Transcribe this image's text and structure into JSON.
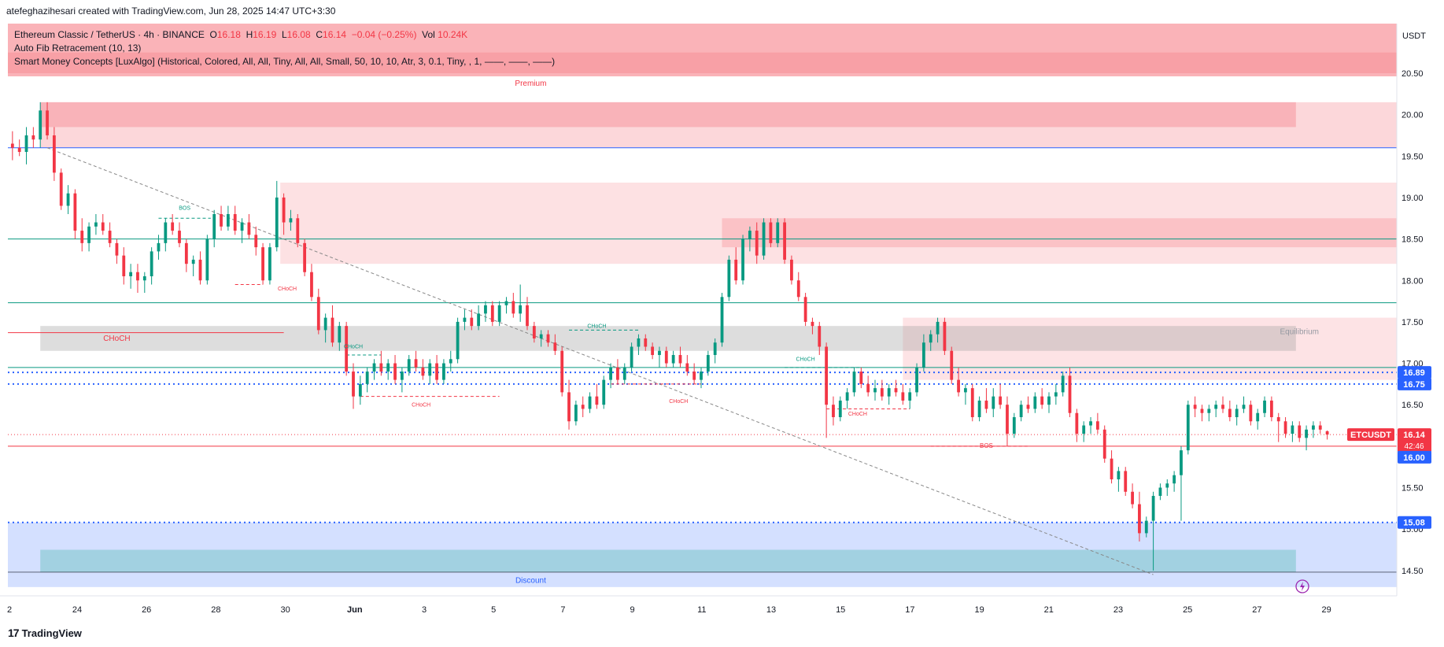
{
  "header": {
    "created_by": "atefeghazihesari created with TradingView.com, Jun 28, 2025 14:47 UTC+3:30"
  },
  "legend": {
    "symbol": "Ethereum Classic / TetherUS · 4h · BINANCE",
    "o_label": "O",
    "o_value": "16.18",
    "h_label": "H",
    "h_value": "16.19",
    "l_label": "L",
    "l_value": "16.08",
    "c_label": "C",
    "c_value": "16.14",
    "change": "−0.04 (−0.25%)",
    "vol_label": "Vol",
    "vol_value": "10.24K",
    "indicator1": "Auto Fib Retracement (10, 13)",
    "indicator2": "Smart Money Concepts [LuxAlgo] (Historical, Colored, All, All, Tiny, All, All, Small, 50, 10, 10, Atr, 3, 0.1, Tiny, , 1, ——, ——, ——)"
  },
  "footer": {
    "brand": "TradingView",
    "brand_mark": "17"
  },
  "colors": {
    "up": "#089981",
    "down": "#f23645",
    "premium": "#f7a9ad",
    "discount": "#bcd3fb",
    "fib_blue": "#2962ff",
    "axis_label_blue": "#2962ff"
  },
  "chart_data": {
    "type": "candlestick",
    "symbol": "ETCUSDT",
    "quote_currency": "USDT",
    "timeframe": "4h",
    "ylim": [
      14.25,
      20.85
    ],
    "y_ticks": [
      "20.50",
      "20.00",
      "19.50",
      "19.00",
      "18.50",
      "18.00",
      "17.50",
      "17.00",
      "16.50",
      "16.00",
      "15.50",
      "15.00",
      "14.50"
    ],
    "x_ticks": [
      "2",
      "24",
      "26",
      "28",
      "30",
      "Jun",
      "3",
      "5",
      "7",
      "9",
      "11",
      "13",
      "15",
      "17",
      "19",
      "21",
      "23",
      "25",
      "27",
      "29"
    ],
    "price_labels": [
      {
        "value": 16.89,
        "text": "16.89",
        "color": "#2962ff"
      },
      {
        "value": 16.75,
        "text": "16.75",
        "color": "#2962ff"
      },
      {
        "value": 16.0,
        "text": "16.00",
        "color": "#2962ff"
      },
      {
        "value": 15.08,
        "text": "15.08",
        "color": "#2962ff"
      }
    ],
    "last_price": {
      "symbol": "ETCUSDT",
      "value": 16.14,
      "text": "16.14",
      "countdown": "42:46"
    },
    "annotations": [
      {
        "text": "Premium",
        "x": 15.1,
        "y": 20.35
      },
      {
        "text": "Equilibrium",
        "x": 37.2,
        "y": 17.35
      },
      {
        "text": "Discount",
        "x": 15.1,
        "y": 14.35
      },
      {
        "text": "CHoCH",
        "x": 3.2,
        "y": 17.27
      },
      {
        "text": "BOS",
        "x": 5.15,
        "y": 18.85
      },
      {
        "text": "CHoCH",
        "x": 8.1,
        "y": 17.88
      },
      {
        "text": "CHoCH",
        "x": 10.0,
        "y": 17.18
      },
      {
        "text": "CHoCH",
        "x": 11.95,
        "y": 16.48
      },
      {
        "text": "CHoCH",
        "x": 17.0,
        "y": 17.43
      },
      {
        "text": "CHoCH",
        "x": 19.35,
        "y": 16.52
      },
      {
        "text": "CHoCH",
        "x": 23.0,
        "y": 17.03
      },
      {
        "text": "CHoCH",
        "x": 24.5,
        "y": 16.37
      },
      {
        "text": "BOS",
        "x": 28.2,
        "y": 15.98
      }
    ],
    "candles": [
      [
        0.0,
        19.3,
        19.75,
        19.2,
        19.65
      ],
      [
        0.2,
        19.65,
        19.8,
        19.45,
        19.6
      ],
      [
        0.4,
        19.6,
        19.7,
        19.5,
        19.55
      ],
      [
        0.6,
        19.55,
        19.85,
        19.4,
        19.75
      ],
      [
        0.8,
        19.75,
        19.85,
        19.6,
        19.7
      ],
      [
        1.0,
        19.7,
        20.15,
        19.6,
        20.05
      ],
      [
        1.2,
        20.05,
        20.15,
        19.7,
        19.75
      ],
      [
        1.4,
        19.75,
        19.85,
        19.2,
        19.3
      ],
      [
        1.6,
        19.3,
        19.35,
        18.85,
        18.9
      ],
      [
        1.8,
        18.9,
        19.15,
        18.8,
        19.05
      ],
      [
        2.0,
        19.05,
        19.1,
        18.5,
        18.6
      ],
      [
        2.2,
        18.6,
        18.75,
        18.35,
        18.45
      ],
      [
        2.4,
        18.45,
        18.7,
        18.35,
        18.65
      ],
      [
        2.6,
        18.65,
        18.8,
        18.55,
        18.7
      ],
      [
        2.8,
        18.7,
        18.8,
        18.55,
        18.6
      ],
      [
        3.0,
        18.6,
        18.7,
        18.4,
        18.45
      ],
      [
        3.2,
        18.45,
        18.5,
        18.2,
        18.3
      ],
      [
        3.4,
        18.3,
        18.4,
        17.95,
        18.05
      ],
      [
        3.6,
        18.05,
        18.2,
        17.9,
        18.1
      ],
      [
        3.8,
        18.1,
        18.2,
        17.85,
        18.0
      ],
      [
        4.0,
        18.0,
        18.1,
        17.85,
        18.05
      ],
      [
        4.2,
        18.05,
        18.4,
        17.95,
        18.35
      ],
      [
        4.4,
        18.35,
        18.55,
        18.25,
        18.45
      ],
      [
        4.6,
        18.45,
        18.75,
        18.35,
        18.7
      ],
      [
        4.8,
        18.7,
        18.8,
        18.55,
        18.6
      ],
      [
        5.0,
        18.6,
        18.7,
        18.4,
        18.45
      ],
      [
        5.2,
        18.45,
        18.5,
        18.1,
        18.2
      ],
      [
        5.4,
        18.2,
        18.3,
        18.05,
        18.25
      ],
      [
        5.6,
        18.25,
        18.35,
        17.95,
        18.0
      ],
      [
        5.8,
        18.0,
        18.55,
        17.95,
        18.5
      ],
      [
        6.0,
        18.5,
        18.85,
        18.4,
        18.8
      ],
      [
        6.2,
        18.8,
        18.9,
        18.6,
        18.65
      ],
      [
        6.4,
        18.65,
        18.9,
        18.6,
        18.8
      ],
      [
        6.6,
        18.8,
        18.9,
        18.55,
        18.6
      ],
      [
        6.8,
        18.6,
        18.75,
        18.45,
        18.7
      ],
      [
        7.0,
        18.7,
        18.8,
        18.5,
        18.55
      ],
      [
        7.2,
        18.55,
        18.65,
        18.3,
        18.4
      ],
      [
        7.4,
        18.4,
        18.45,
        17.95,
        18.0
      ],
      [
        7.6,
        18.0,
        18.45,
        17.95,
        18.4
      ],
      [
        7.8,
        18.4,
        19.2,
        18.35,
        19.0
      ],
      [
        8.0,
        19.0,
        19.05,
        18.55,
        18.7
      ],
      [
        8.2,
        18.7,
        18.85,
        18.6,
        18.75
      ],
      [
        8.4,
        18.75,
        18.8,
        18.4,
        18.45
      ],
      [
        8.6,
        18.45,
        18.5,
        18.05,
        18.1
      ],
      [
        8.8,
        18.1,
        18.2,
        17.75,
        17.8
      ],
      [
        9.0,
        17.8,
        17.9,
        17.35,
        17.4
      ],
      [
        9.2,
        17.4,
        17.6,
        17.25,
        17.55
      ],
      [
        9.4,
        17.55,
        17.7,
        17.2,
        17.25
      ],
      [
        9.6,
        17.25,
        17.5,
        17.15,
        17.45
      ],
      [
        9.8,
        17.45,
        17.5,
        16.85,
        16.9
      ],
      [
        10.0,
        16.9,
        17.0,
        16.45,
        16.6
      ],
      [
        10.2,
        16.6,
        16.85,
        16.5,
        16.75
      ],
      [
        10.4,
        16.75,
        16.95,
        16.65,
        16.9
      ],
      [
        10.6,
        16.9,
        17.05,
        16.8,
        17.0
      ],
      [
        10.8,
        17.0,
        17.15,
        16.85,
        16.9
      ],
      [
        11.0,
        16.9,
        17.05,
        16.8,
        17.0
      ],
      [
        11.2,
        17.0,
        17.1,
        16.75,
        16.8
      ],
      [
        11.4,
        16.8,
        16.95,
        16.65,
        16.9
      ],
      [
        11.6,
        16.9,
        17.1,
        16.85,
        17.05
      ],
      [
        11.8,
        17.05,
        17.15,
        16.9,
        16.95
      ],
      [
        12.0,
        16.95,
        17.05,
        16.8,
        16.85
      ],
      [
        12.2,
        16.85,
        17.05,
        16.75,
        17.0
      ],
      [
        12.4,
        17.0,
        17.1,
        16.75,
        16.8
      ],
      [
        12.6,
        16.8,
        17.05,
        16.75,
        17.0
      ],
      [
        12.8,
        17.0,
        17.15,
        16.9,
        17.05
      ],
      [
        13.0,
        17.05,
        17.55,
        17.0,
        17.5
      ],
      [
        13.2,
        17.5,
        17.65,
        17.4,
        17.55
      ],
      [
        13.4,
        17.55,
        17.65,
        17.4,
        17.45
      ],
      [
        13.6,
        17.45,
        17.7,
        17.4,
        17.6
      ],
      [
        13.8,
        17.6,
        17.75,
        17.5,
        17.7
      ],
      [
        14.0,
        17.7,
        17.75,
        17.45,
        17.5
      ],
      [
        14.2,
        17.5,
        17.75,
        17.45,
        17.7
      ],
      [
        14.4,
        17.7,
        17.8,
        17.6,
        17.75
      ],
      [
        14.6,
        17.75,
        17.85,
        17.55,
        17.6
      ],
      [
        14.8,
        17.6,
        17.95,
        17.5,
        17.7
      ],
      [
        15.0,
        17.7,
        17.8,
        17.4,
        17.45
      ],
      [
        15.2,
        17.45,
        17.5,
        17.25,
        17.3
      ],
      [
        15.4,
        17.3,
        17.4,
        17.2,
        17.35
      ],
      [
        15.6,
        17.35,
        17.4,
        17.2,
        17.25
      ],
      [
        15.8,
        17.25,
        17.35,
        17.1,
        17.15
      ],
      [
        16.0,
        17.15,
        17.2,
        16.6,
        16.65
      ],
      [
        16.2,
        16.65,
        16.8,
        16.2,
        16.3
      ],
      [
        16.4,
        16.3,
        16.55,
        16.25,
        16.5
      ],
      [
        16.6,
        16.5,
        16.6,
        16.35,
        16.45
      ],
      [
        16.8,
        16.45,
        16.65,
        16.4,
        16.6
      ],
      [
        17.0,
        16.6,
        16.75,
        16.45,
        16.5
      ],
      [
        17.2,
        16.5,
        16.85,
        16.45,
        16.8
      ],
      [
        17.4,
        16.8,
        17.0,
        16.7,
        16.95
      ],
      [
        17.6,
        16.95,
        17.05,
        16.75,
        16.8
      ],
      [
        17.8,
        16.8,
        17.0,
        16.75,
        16.95
      ],
      [
        18.0,
        16.95,
        17.25,
        16.9,
        17.2
      ],
      [
        18.2,
        17.2,
        17.35,
        17.1,
        17.3
      ],
      [
        18.4,
        17.3,
        17.35,
        17.15,
        17.2
      ],
      [
        18.6,
        17.2,
        17.25,
        17.05,
        17.1
      ],
      [
        18.8,
        17.1,
        17.2,
        16.95,
        17.15
      ],
      [
        19.0,
        17.15,
        17.2,
        16.95,
        17.0
      ],
      [
        19.2,
        17.0,
        17.15,
        16.95,
        17.1
      ],
      [
        19.4,
        17.1,
        17.2,
        16.95,
        17.0
      ],
      [
        19.6,
        17.0,
        17.1,
        16.85,
        16.9
      ],
      [
        19.8,
        16.9,
        17.0,
        16.75,
        16.8
      ],
      [
        20.0,
        16.8,
        16.95,
        16.7,
        16.9
      ],
      [
        20.2,
        16.9,
        17.15,
        16.85,
        17.1
      ],
      [
        20.4,
        17.1,
        17.3,
        17.0,
        17.25
      ],
      [
        20.6,
        17.25,
        17.85,
        17.2,
        17.8
      ],
      [
        20.8,
        17.8,
        18.3,
        17.75,
        18.25
      ],
      [
        21.0,
        18.25,
        18.4,
        17.95,
        18.0
      ],
      [
        21.2,
        18.0,
        18.55,
        17.95,
        18.5
      ],
      [
        21.4,
        18.5,
        18.65,
        18.35,
        18.6
      ],
      [
        21.6,
        18.6,
        18.7,
        18.2,
        18.3
      ],
      [
        21.8,
        18.3,
        18.75,
        18.25,
        18.7
      ],
      [
        22.0,
        18.7,
        18.75,
        18.4,
        18.45
      ],
      [
        22.2,
        18.45,
        18.75,
        18.4,
        18.7
      ],
      [
        22.4,
        18.7,
        18.75,
        18.2,
        18.25
      ],
      [
        22.6,
        18.25,
        18.3,
        17.95,
        18.0
      ],
      [
        22.8,
        18.0,
        18.1,
        17.75,
        17.8
      ],
      [
        23.0,
        17.8,
        17.85,
        17.45,
        17.5
      ],
      [
        23.2,
        17.5,
        17.55,
        17.35,
        17.45
      ],
      [
        23.4,
        17.45,
        17.5,
        17.1,
        17.2
      ],
      [
        23.6,
        17.2,
        17.25,
        16.1,
        16.5
      ],
      [
        23.8,
        16.5,
        16.6,
        16.25,
        16.35
      ],
      [
        24.0,
        16.35,
        16.6,
        16.3,
        16.55
      ],
      [
        24.2,
        16.55,
        16.7,
        16.45,
        16.65
      ],
      [
        24.4,
        16.65,
        16.95,
        16.6,
        16.9
      ],
      [
        24.6,
        16.9,
        16.95,
        16.7,
        16.75
      ],
      [
        24.8,
        16.75,
        16.85,
        16.6,
        16.65
      ],
      [
        25.0,
        16.65,
        16.8,
        16.55,
        16.7
      ],
      [
        25.2,
        16.7,
        16.8,
        16.55,
        16.6
      ],
      [
        25.4,
        16.6,
        16.75,
        16.5,
        16.7
      ],
      [
        25.6,
        16.7,
        16.8,
        16.6,
        16.65
      ],
      [
        25.8,
        16.65,
        16.75,
        16.5,
        16.55
      ],
      [
        26.0,
        16.55,
        16.7,
        16.45,
        16.65
      ],
      [
        26.2,
        16.65,
        17.0,
        16.6,
        16.95
      ],
      [
        26.4,
        16.95,
        17.35,
        16.9,
        17.25
      ],
      [
        26.6,
        17.25,
        17.4,
        17.15,
        17.35
      ],
      [
        26.8,
        17.35,
        17.55,
        17.25,
        17.5
      ],
      [
        27.0,
        17.5,
        17.55,
        17.1,
        17.15
      ],
      [
        27.2,
        17.15,
        17.2,
        16.75,
        16.8
      ],
      [
        27.4,
        16.8,
        16.95,
        16.6,
        16.65
      ],
      [
        27.6,
        16.65,
        16.75,
        16.5,
        16.7
      ],
      [
        27.8,
        16.7,
        16.75,
        16.3,
        16.35
      ],
      [
        28.0,
        16.35,
        16.6,
        16.3,
        16.55
      ],
      [
        28.2,
        16.55,
        16.7,
        16.4,
        16.45
      ],
      [
        28.4,
        16.45,
        16.7,
        16.35,
        16.6
      ],
      [
        28.6,
        16.6,
        16.75,
        16.45,
        16.5
      ],
      [
        28.8,
        16.5,
        16.6,
        16.0,
        16.15
      ],
      [
        29.0,
        16.15,
        16.4,
        16.1,
        16.35
      ],
      [
        29.2,
        16.35,
        16.55,
        16.3,
        16.5
      ],
      [
        29.4,
        16.5,
        16.6,
        16.4,
        16.45
      ],
      [
        29.6,
        16.45,
        16.65,
        16.4,
        16.6
      ],
      [
        29.8,
        16.6,
        16.7,
        16.45,
        16.5
      ],
      [
        30.0,
        16.5,
        16.65,
        16.4,
        16.6
      ],
      [
        30.2,
        16.6,
        16.75,
        16.5,
        16.65
      ],
      [
        30.4,
        16.65,
        16.9,
        16.6,
        16.85
      ],
      [
        30.6,
        16.85,
        16.95,
        16.35,
        16.4
      ],
      [
        30.8,
        16.4,
        16.45,
        16.05,
        16.15
      ],
      [
        31.0,
        16.15,
        16.3,
        16.05,
        16.25
      ],
      [
        31.2,
        16.25,
        16.35,
        16.15,
        16.3
      ],
      [
        31.4,
        16.3,
        16.4,
        16.15,
        16.2
      ],
      [
        31.6,
        16.2,
        16.25,
        15.8,
        15.85
      ],
      [
        31.8,
        15.85,
        15.95,
        15.55,
        15.6
      ],
      [
        32.0,
        15.6,
        15.75,
        15.45,
        15.7
      ],
      [
        32.2,
        15.7,
        15.75,
        15.4,
        15.45
      ],
      [
        32.4,
        15.45,
        15.55,
        15.25,
        15.3
      ],
      [
        32.6,
        15.3,
        15.45,
        14.85,
        14.95
      ],
      [
        32.8,
        14.95,
        15.15,
        14.9,
        15.1
      ],
      [
        33.0,
        15.1,
        15.45,
        14.5,
        15.4
      ],
      [
        33.2,
        15.4,
        15.55,
        15.35,
        15.5
      ],
      [
        33.4,
        15.5,
        15.6,
        15.4,
        15.55
      ],
      [
        33.6,
        15.55,
        15.7,
        15.45,
        15.65
      ],
      [
        33.8,
        15.65,
        16.0,
        15.1,
        15.95
      ],
      [
        34.0,
        15.95,
        16.55,
        15.9,
        16.5
      ],
      [
        34.2,
        16.5,
        16.6,
        16.35,
        16.45
      ],
      [
        34.4,
        16.45,
        16.5,
        16.3,
        16.4
      ],
      [
        34.6,
        16.4,
        16.5,
        16.3,
        16.45
      ],
      [
        34.8,
        16.45,
        16.55,
        16.35,
        16.5
      ],
      [
        35.0,
        16.5,
        16.6,
        16.4,
        16.45
      ],
      [
        35.2,
        16.45,
        16.55,
        16.3,
        16.35
      ],
      [
        35.4,
        16.35,
        16.5,
        16.25,
        16.45
      ],
      [
        35.6,
        16.45,
        16.6,
        16.4,
        16.5
      ],
      [
        35.8,
        16.5,
        16.55,
        16.25,
        16.3
      ],
      [
        36.0,
        16.3,
        16.45,
        16.2,
        16.4
      ],
      [
        36.2,
        16.4,
        16.6,
        16.35,
        16.55
      ],
      [
        36.4,
        16.55,
        16.6,
        16.3,
        16.35
      ],
      [
        36.6,
        16.35,
        16.4,
        16.05,
        16.3
      ],
      [
        36.8,
        16.3,
        16.35,
        16.1,
        16.15
      ],
      [
        37.0,
        16.15,
        16.3,
        16.05,
        16.25
      ],
      [
        37.2,
        16.25,
        16.3,
        16.05,
        16.1
      ],
      [
        37.4,
        16.1,
        16.25,
        15.95,
        16.2
      ],
      [
        37.6,
        16.2,
        16.3,
        16.1,
        16.25
      ],
      [
        37.8,
        16.25,
        16.3,
        16.15,
        16.2
      ],
      [
        38.0,
        16.18,
        16.19,
        16.08,
        16.14
      ]
    ]
  }
}
